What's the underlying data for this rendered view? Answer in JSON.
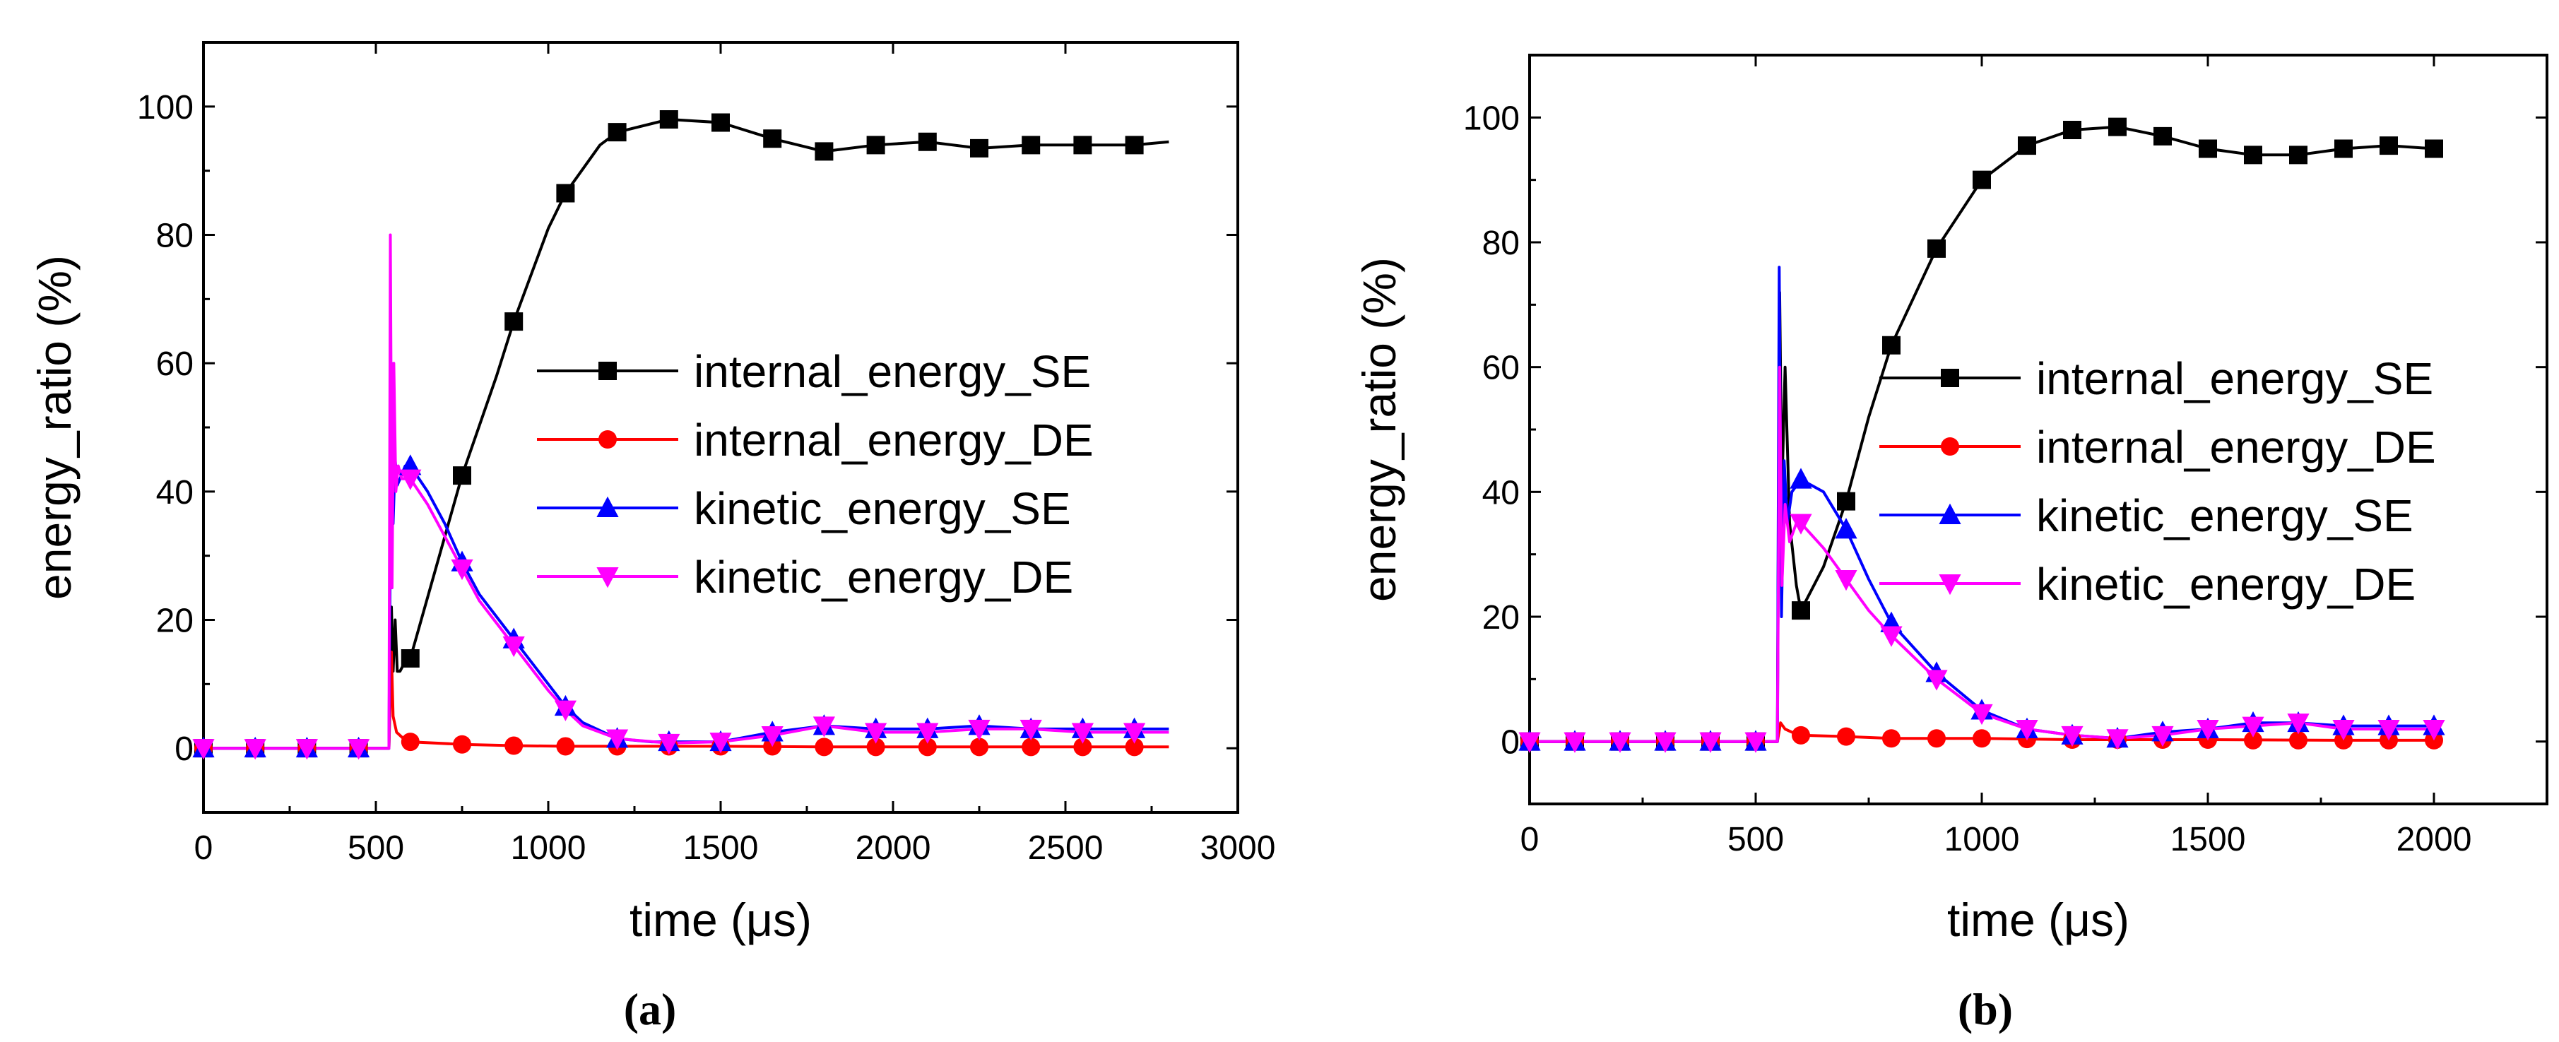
{
  "chart_data": [
    {
      "type": "line",
      "caption": "(a)",
      "xlabel": "time (μs)",
      "ylabel": "energy_ratio (%)",
      "xlim": [
        0,
        3000
      ],
      "ylim": [
        -10,
        110
      ],
      "xticks": [
        0,
        500,
        1000,
        1500,
        2000,
        2500,
        3000
      ],
      "yticks": [
        0,
        20,
        40,
        60,
        80,
        100
      ],
      "legend_position": "center-right",
      "series": [
        {
          "name": "internal_energy_SE",
          "color": "#000000",
          "marker": "square",
          "x": [
            0,
            150,
            300,
            450,
            538,
            545,
            550,
            556,
            562,
            570,
            580,
            600,
            700,
            750,
            850,
            900,
            1000,
            1050,
            1150,
            1200,
            1350,
            1500,
            1650,
            1800,
            1950,
            2100,
            2250,
            2400,
            2550,
            2700,
            2800
          ],
          "y": [
            0,
            0,
            0,
            0,
            0,
            22,
            12,
            20,
            12,
            12,
            13,
            14,
            33,
            42.5,
            58,
            66.5,
            81,
            86.5,
            94,
            96,
            98,
            97.5,
            95,
            93,
            94,
            94.5,
            93.5,
            94,
            94,
            94,
            94.5
          ],
          "marker_x": [
            0,
            150,
            300,
            450,
            600,
            750,
            900,
            1050,
            1200,
            1350,
            1500,
            1650,
            1800,
            1950,
            2100,
            2250,
            2400,
            2550,
            2700
          ],
          "marker_y": [
            0,
            0,
            0,
            0,
            14,
            42.5,
            66.5,
            86.5,
            96,
            98,
            97.5,
            95,
            93,
            94,
            94.5,
            93.5,
            94,
            94,
            94
          ]
        },
        {
          "name": "internal_energy_DE",
          "color": "#ff0000",
          "marker": "circle",
          "x": [
            0,
            150,
            300,
            450,
            538,
            545,
            550,
            560,
            580,
            600,
            750,
            900,
            1050,
            1200,
            1350,
            1500,
            1800,
            2100,
            2400,
            2800
          ],
          "y": [
            0,
            0,
            0,
            0,
            0,
            15,
            5,
            2.5,
            1.5,
            1,
            0.6,
            0.4,
            0.3,
            0.3,
            0.3,
            0.3,
            0.2,
            0.2,
            0.2,
            0.2
          ],
          "marker_x": [
            0,
            150,
            300,
            450,
            600,
            750,
            900,
            1050,
            1200,
            1350,
            1500,
            1650,
            1800,
            1950,
            2100,
            2250,
            2400,
            2550,
            2700
          ],
          "marker_y": [
            0,
            0,
            0,
            0,
            1,
            0.6,
            0.4,
            0.3,
            0.3,
            0.3,
            0.3,
            0.3,
            0.2,
            0.2,
            0.2,
            0.2,
            0.2,
            0.2,
            0.2
          ]
        },
        {
          "name": "kinetic_energy_SE",
          "color": "#0000ff",
          "marker": "triangle-up",
          "x": [
            0,
            150,
            300,
            450,
            538,
            545,
            550,
            556,
            562,
            570,
            585,
            600,
            650,
            700,
            750,
            800,
            900,
            1000,
            1050,
            1100,
            1200,
            1300,
            1350,
            1500,
            1650,
            1800,
            1950,
            2100,
            2250,
            2400,
            2550,
            2700,
            2800
          ],
          "y": [
            0,
            0,
            0,
            0,
            0,
            60,
            35,
            45,
            41,
            42,
            44,
            44,
            40,
            35,
            29,
            24,
            17,
            10,
            6.5,
            4,
            1.5,
            1,
            1,
            1,
            2.5,
            3.5,
            3,
            3,
            3.5,
            3,
            3,
            3,
            3
          ],
          "marker_x": [
            0,
            150,
            300,
            450,
            600,
            750,
            900,
            1050,
            1200,
            1350,
            1500,
            1650,
            1800,
            1950,
            2100,
            2250,
            2400,
            2550,
            2700
          ],
          "marker_y": [
            0,
            0,
            0,
            0,
            44,
            29,
            17,
            6.5,
            1.5,
            1,
            1,
            2.5,
            3.5,
            3,
            3,
            3.5,
            3,
            3,
            3
          ]
        },
        {
          "name": "kinetic_energy_DE",
          "color": "#ff00ff",
          "marker": "triangle-down",
          "x": [
            0,
            150,
            300,
            450,
            538,
            542,
            547,
            552,
            558,
            565,
            575,
            590,
            600,
            650,
            700,
            750,
            800,
            900,
            1000,
            1050,
            1100,
            1200,
            1350,
            1500,
            1650,
            1800,
            1950,
            2100,
            2250,
            2400,
            2550,
            2700,
            2800
          ],
          "y": [
            0,
            0,
            0,
            0,
            0,
            80,
            25,
            60,
            40,
            44,
            42,
            42,
            42,
            38,
            33,
            28,
            23,
            16,
            9,
            6,
            3.5,
            1.5,
            0.8,
            1,
            2,
            3.5,
            2.5,
            2.5,
            3,
            3,
            2.5,
            2.5,
            2.5
          ],
          "marker_x": [
            0,
            150,
            300,
            450,
            600,
            750,
            900,
            1050,
            1200,
            1350,
            1500,
            1650,
            1800,
            1950,
            2100,
            2250,
            2400,
            2550,
            2700
          ],
          "marker_y": [
            0,
            0,
            0,
            0,
            42,
            28,
            16,
            6,
            1.5,
            0.8,
            1,
            2,
            3.5,
            2.5,
            2.5,
            3,
            3,
            2.5,
            2.5
          ]
        }
      ]
    },
    {
      "type": "line",
      "caption": "(b)",
      "xlabel": "time (μs)",
      "ylabel": "energy_ratio (%)",
      "xlim": [
        0,
        2250
      ],
      "ylim": [
        -10,
        110
      ],
      "xticks": [
        0,
        500,
        1000,
        1500,
        2000
      ],
      "yticks": [
        0,
        20,
        40,
        60,
        80,
        100
      ],
      "legend_position": "center-right",
      "series": [
        {
          "name": "internal_energy_SE",
          "color": "#000000",
          "marker": "square",
          "x": [
            0,
            100,
            200,
            300,
            400,
            500,
            548,
            553,
            558,
            565,
            575,
            590,
            600,
            650,
            700,
            750,
            800,
            900,
            1000,
            1100,
            1200,
            1300,
            1400,
            1500,
            1600,
            1700,
            1800,
            1900,
            2000
          ],
          "y": [
            0,
            0,
            0,
            0,
            0,
            0,
            0,
            72,
            40,
            60,
            35,
            25,
            21,
            28,
            38.5,
            52,
            63.5,
            79,
            90,
            95.5,
            98,
            98.5,
            97,
            95,
            94,
            94,
            95,
            95.5,
            95
          ],
          "marker_x": [
            0,
            100,
            200,
            300,
            400,
            500,
            600,
            700,
            800,
            900,
            1000,
            1100,
            1200,
            1300,
            1400,
            1500,
            1600,
            1700,
            1800,
            1900,
            2000
          ],
          "marker_y": [
            0,
            0,
            0,
            0,
            0,
            0,
            21,
            38.5,
            63.5,
            79,
            90,
            95.5,
            98,
            98.5,
            97,
            95,
            94,
            94,
            95,
            95.5,
            95
          ]
        },
        {
          "name": "internal_energy_DE",
          "color": "#ff0000",
          "marker": "circle",
          "x": [
            0,
            100,
            200,
            300,
            400,
            500,
            548,
            555,
            565,
            580,
            600,
            700,
            800,
            900,
            1000,
            1200,
            1500,
            1800,
            2000
          ],
          "y": [
            0,
            0,
            0,
            0,
            0,
            0,
            0,
            3,
            2,
            1.5,
            1,
            0.8,
            0.5,
            0.5,
            0.5,
            0.3,
            0.3,
            0.2,
            0.2
          ],
          "marker_x": [
            0,
            100,
            200,
            300,
            400,
            500,
            600,
            700,
            800,
            900,
            1000,
            1100,
            1200,
            1300,
            1400,
            1500,
            1600,
            1700,
            1800,
            1900,
            2000
          ],
          "marker_y": [
            0,
            0,
            0,
            0,
            0,
            0,
            1,
            0.8,
            0.5,
            0.5,
            0.5,
            0.4,
            0.3,
            0.3,
            0.3,
            0.3,
            0.2,
            0.2,
            0.2,
            0.2,
            0.2
          ]
        },
        {
          "name": "kinetic_energy_SE",
          "color": "#0000ff",
          "marker": "triangle-up",
          "x": [
            0,
            100,
            200,
            300,
            400,
            500,
            548,
            552,
            557,
            563,
            570,
            580,
            600,
            650,
            700,
            750,
            800,
            900,
            1000,
            1100,
            1200,
            1300,
            1400,
            1500,
            1600,
            1700,
            1800,
            1900,
            2000
          ],
          "y": [
            0,
            0,
            0,
            0,
            0,
            0,
            0,
            76,
            20,
            45,
            35,
            40,
            42,
            40,
            34,
            26,
            19,
            11,
            5,
            2,
            1,
            0.5,
            1.5,
            2,
            3,
            3,
            2.5,
            2.5,
            2.5
          ],
          "marker_x": [
            0,
            100,
            200,
            300,
            400,
            500,
            600,
            700,
            800,
            900,
            1000,
            1100,
            1200,
            1300,
            1400,
            1500,
            1600,
            1700,
            1800,
            1900,
            2000
          ],
          "marker_y": [
            0,
            0,
            0,
            0,
            0,
            0,
            42,
            34,
            19,
            11,
            5,
            2,
            1,
            0.5,
            1.5,
            2,
            3,
            3,
            2.5,
            2.5,
            2.5
          ]
        },
        {
          "name": "kinetic_energy_DE",
          "color": "#ff00ff",
          "marker": "triangle-down",
          "x": [
            0,
            100,
            200,
            300,
            400,
            500,
            548,
            553,
            558,
            565,
            575,
            590,
            600,
            650,
            700,
            750,
            800,
            900,
            1000,
            1100,
            1200,
            1300,
            1400,
            1500,
            1600,
            1700,
            1800,
            1900,
            2000
          ],
          "y": [
            0,
            0,
            0,
            0,
            0,
            0,
            0,
            60,
            25,
            38,
            32,
            35,
            35,
            31,
            26,
            21,
            17,
            10,
            4.5,
            2,
            1,
            0.5,
            1,
            2,
            2.5,
            3,
            2,
            2,
            2
          ],
          "marker_x": [
            0,
            100,
            200,
            300,
            400,
            500,
            600,
            700,
            800,
            900,
            1000,
            1100,
            1200,
            1300,
            1400,
            1500,
            1600,
            1700,
            1800,
            1900,
            2000
          ],
          "marker_y": [
            0,
            0,
            0,
            0,
            0,
            0,
            35,
            26,
            17,
            10,
            4.5,
            2,
            1,
            0.5,
            1,
            2,
            2.5,
            3,
            2,
            2,
            2
          ]
        }
      ]
    }
  ]
}
